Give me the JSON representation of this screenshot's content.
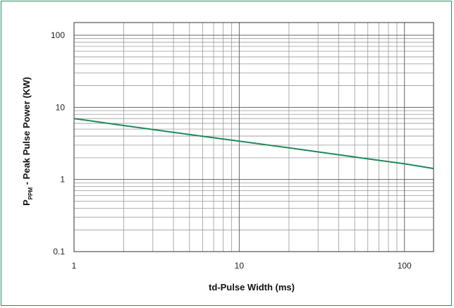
{
  "chart_data": {
    "type": "line",
    "x_scale": "log",
    "y_scale": "log",
    "xlim": [
      1,
      150
    ],
    "ylim": [
      0.1,
      150
    ],
    "grid": true,
    "x_ticks": [
      1,
      10,
      100
    ],
    "x_tick_labels": [
      "1",
      "10",
      "100"
    ],
    "y_ticks": [
      0.1,
      1,
      10,
      100
    ],
    "y_tick_labels": [
      "0.1",
      "1",
      "10",
      "100"
    ],
    "xlabel": "td-Pulse Width (ms)",
    "ylabel": {
      "prefix": "P",
      "subscript": "PPM",
      "text": " - Peak Pulse Power (KW)"
    },
    "series": [
      {
        "color": "#1f8a57",
        "x": [
          1,
          2,
          5,
          10,
          20,
          50,
          100,
          150
        ],
        "y": [
          7.0,
          5.6,
          4.2,
          3.4,
          2.75,
          2.05,
          1.65,
          1.42
        ]
      }
    ]
  }
}
